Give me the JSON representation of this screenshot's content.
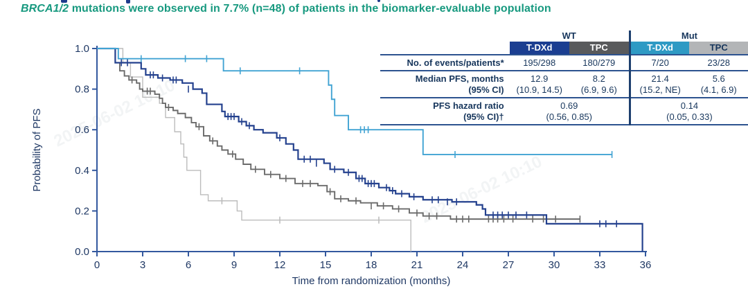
{
  "subtitle": {
    "gene": "BRCA1/2",
    "rest": " mutations were observed in 7.7% (n=48) of patients in the biomarker-evaluable population"
  },
  "watermark": "2025-06-02 10:10",
  "colors": {
    "subtitle_green": "#17997f",
    "table_text_navy": "#17365c",
    "axis_navy": "#33589e",
    "wt_tdxd_curve": "#24418e",
    "wt_tpc_curve": "#6a6a6a",
    "mut_tdxd_curve": "#41a3d3",
    "mut_tpc_curve": "#bcbcbc",
    "hdr_wt_tdxd_bg": "#1b3e91",
    "hdr_wt_tpc_bg": "#595a5c",
    "hdr_mut_tdxd_bg": "#2e9ac4",
    "hdr_mut_tpc_bg": "#b3b5b7"
  },
  "table": {
    "group_headers": [
      "WT",
      "Mut"
    ],
    "columns": [
      "T-DXd",
      "TPC",
      "T-DXd",
      "TPC"
    ],
    "row_events": {
      "label": "No. of events/patients*",
      "values": [
        "195/298",
        "180/279",
        "7/20",
        "23/28"
      ]
    },
    "row_median": {
      "label": "Median PFS, months",
      "label_ci": "(95% CI)",
      "values": [
        "12.9",
        "8.2",
        "21.4",
        "5.6"
      ],
      "cis": [
        "(10.9, 14.5)",
        "(6.9, 9.6)",
        "(15.2, NE)",
        "(4.1, 6.9)"
      ]
    },
    "row_hr": {
      "label": "PFS hazard ratio",
      "label_ci": "(95% CI)†",
      "values": [
        "0.69",
        "0.14"
      ],
      "cis": [
        "(0.56, 0.85)",
        "(0.05, 0.33)"
      ]
    }
  },
  "chart_data": {
    "type": "line",
    "subtype": "kaplan-meier-step",
    "title": "BRCA1/2 mutations were observed in 7.7% (n=48) of patients in the biomarker-evaluable population",
    "xlabel": "Time from randomization (months)",
    "ylabel": "Probability of PFS",
    "xlim": [
      0,
      36
    ],
    "ylim": [
      0.0,
      1.0
    ],
    "xticks": [
      0,
      3,
      6,
      9,
      12,
      15,
      18,
      21,
      24,
      27,
      30,
      33,
      36
    ],
    "ytick_labels": [
      "0.0",
      "0.2",
      "0.4",
      "0.6",
      "0.8",
      "1.0"
    ],
    "grid": false,
    "legend": "none (identified via table header colors)",
    "series": [
      {
        "name": "Mut TPC",
        "color": "#bcbcbc",
        "width": 1.4,
        "end": 20.6,
        "steps": [
          [
            0,
            1.0
          ],
          [
            1.7,
            0.93
          ],
          [
            2.2,
            0.86
          ],
          [
            3.0,
            0.76
          ],
          [
            4.1,
            0.73
          ],
          [
            4.5,
            0.66
          ],
          [
            5.1,
            0.59
          ],
          [
            5.5,
            0.53
          ],
          [
            5.7,
            0.465
          ],
          [
            5.9,
            0.4
          ],
          [
            6.8,
            0.28
          ],
          [
            7.3,
            0.25
          ],
          [
            9.2,
            0.2
          ],
          [
            9.5,
            0.155
          ],
          [
            20.6,
            0.0
          ]
        ],
        "censors": [
          [
            8.2,
            0.25
          ],
          [
            12.0,
            0.155
          ],
          [
            18.5,
            0.155
          ]
        ]
      },
      {
        "name": "WT TPC",
        "color": "#6a6a6a",
        "width": 1.9,
        "end": 31.7,
        "steps": [
          [
            0,
            1.0
          ],
          [
            1.2,
            0.93
          ],
          [
            1.5,
            0.89
          ],
          [
            1.8,
            0.865
          ],
          [
            2.1,
            0.845
          ],
          [
            2.6,
            0.83
          ],
          [
            2.8,
            0.8
          ],
          [
            3.0,
            0.79
          ],
          [
            3.8,
            0.775
          ],
          [
            4.1,
            0.755
          ],
          [
            4.3,
            0.73
          ],
          [
            4.5,
            0.71
          ],
          [
            5.0,
            0.695
          ],
          [
            5.3,
            0.68
          ],
          [
            5.8,
            0.66
          ],
          [
            6.2,
            0.635
          ],
          [
            6.5,
            0.615
          ],
          [
            7.0,
            0.57
          ],
          [
            7.4,
            0.545
          ],
          [
            7.9,
            0.52
          ],
          [
            8.2,
            0.5
          ],
          [
            8.6,
            0.48
          ],
          [
            9.1,
            0.455
          ],
          [
            9.6,
            0.43
          ],
          [
            10.1,
            0.405
          ],
          [
            11.0,
            0.38
          ],
          [
            12.0,
            0.36
          ],
          [
            13.0,
            0.335
          ],
          [
            14.5,
            0.325
          ],
          [
            15.1,
            0.295
          ],
          [
            15.6,
            0.26
          ],
          [
            16.5,
            0.25
          ],
          [
            17.3,
            0.24
          ],
          [
            18.4,
            0.225
          ],
          [
            19.4,
            0.21
          ],
          [
            20.5,
            0.19
          ],
          [
            21.4,
            0.175
          ],
          [
            23.2,
            0.16
          ]
        ],
        "censors": [
          [
            2.3,
            0.845
          ],
          [
            3.3,
            0.79
          ],
          [
            3.5,
            0.79
          ],
          [
            4.7,
            0.71
          ],
          [
            6.7,
            0.615
          ],
          [
            7.6,
            0.545
          ],
          [
            8.9,
            0.48
          ],
          [
            10.4,
            0.405
          ],
          [
            11.4,
            0.38
          ],
          [
            12.4,
            0.36
          ],
          [
            13.5,
            0.335
          ],
          [
            14.0,
            0.335
          ],
          [
            15.3,
            0.295
          ],
          [
            16.0,
            0.26
          ],
          [
            17.0,
            0.25
          ],
          [
            18.0,
            0.225
          ],
          [
            18.8,
            0.225
          ],
          [
            19.8,
            0.21
          ],
          [
            21.0,
            0.19
          ],
          [
            21.8,
            0.175
          ],
          [
            22.3,
            0.175
          ],
          [
            23.6,
            0.16
          ],
          [
            24.0,
            0.16
          ],
          [
            24.4,
            0.16
          ],
          [
            25.7,
            0.16
          ],
          [
            26.0,
            0.16
          ],
          [
            26.3,
            0.16
          ],
          [
            26.7,
            0.16
          ],
          [
            27.3,
            0.16
          ],
          [
            28.6,
            0.16
          ],
          [
            29.3,
            0.16
          ],
          [
            30.1,
            0.16
          ],
          [
            31.7,
            0.16
          ]
        ]
      },
      {
        "name": "WT T-DXd",
        "color": "#24418e",
        "width": 2.2,
        "end": 35.8,
        "steps": [
          [
            0,
            1.0
          ],
          [
            1.2,
            0.93
          ],
          [
            2.9,
            0.9
          ],
          [
            3.2,
            0.87
          ],
          [
            4.0,
            0.855
          ],
          [
            4.8,
            0.845
          ],
          [
            5.6,
            0.83
          ],
          [
            6.3,
            0.8
          ],
          [
            6.9,
            0.78
          ],
          [
            7.2,
            0.725
          ],
          [
            8.2,
            0.69
          ],
          [
            8.4,
            0.665
          ],
          [
            9.3,
            0.64
          ],
          [
            9.8,
            0.62
          ],
          [
            10.3,
            0.6
          ],
          [
            10.9,
            0.585
          ],
          [
            11.8,
            0.56
          ],
          [
            12.4,
            0.53
          ],
          [
            12.9,
            0.5
          ],
          [
            13.2,
            0.455
          ],
          [
            14.9,
            0.435
          ],
          [
            15.3,
            0.405
          ],
          [
            16.2,
            0.39
          ],
          [
            17.0,
            0.36
          ],
          [
            17.6,
            0.335
          ],
          [
            18.5,
            0.315
          ],
          [
            19.2,
            0.3
          ],
          [
            19.6,
            0.285
          ],
          [
            20.5,
            0.27
          ],
          [
            21.4,
            0.255
          ],
          [
            23.3,
            0.245
          ],
          [
            24.9,
            0.23
          ],
          [
            25.3,
            0.21
          ],
          [
            25.5,
            0.18
          ],
          [
            29.5,
            0.137
          ],
          [
            35.8,
            0.0
          ]
        ],
        "censors": [
          [
            1.6,
            0.93
          ],
          [
            2.0,
            0.93
          ],
          [
            3.5,
            0.87
          ],
          [
            3.7,
            0.87
          ],
          [
            4.3,
            0.855
          ],
          [
            5.0,
            0.845
          ],
          [
            5.2,
            0.845
          ],
          [
            6.0,
            0.8
          ],
          [
            8.6,
            0.665
          ],
          [
            8.8,
            0.665
          ],
          [
            9.0,
            0.665
          ],
          [
            9.5,
            0.64
          ],
          [
            10.0,
            0.62
          ],
          [
            12.0,
            0.56
          ],
          [
            13.6,
            0.455
          ],
          [
            14.0,
            0.455
          ],
          [
            14.4,
            0.435
          ],
          [
            15.6,
            0.405
          ],
          [
            16.5,
            0.39
          ],
          [
            17.2,
            0.36
          ],
          [
            17.4,
            0.36
          ],
          [
            17.8,
            0.335
          ],
          [
            18.0,
            0.335
          ],
          [
            18.2,
            0.335
          ],
          [
            19.0,
            0.315
          ],
          [
            19.4,
            0.3
          ],
          [
            20.0,
            0.285
          ],
          [
            20.8,
            0.27
          ],
          [
            22.0,
            0.255
          ],
          [
            22.4,
            0.255
          ],
          [
            23.0,
            0.245
          ],
          [
            23.6,
            0.245
          ],
          [
            26.0,
            0.18
          ],
          [
            26.3,
            0.18
          ],
          [
            26.6,
            0.18
          ],
          [
            27.0,
            0.18
          ],
          [
            27.5,
            0.18
          ],
          [
            28.2,
            0.18
          ],
          [
            33.0,
            0.137
          ],
          [
            33.4,
            0.137
          ],
          [
            34.1,
            0.137
          ]
        ]
      },
      {
        "name": "Mut T-DXd",
        "color": "#41a3d3",
        "width": 1.9,
        "end": 33.8,
        "steps": [
          [
            0,
            1.0
          ],
          [
            1.4,
            0.95
          ],
          [
            8.3,
            0.89
          ],
          [
            15.2,
            0.82
          ],
          [
            15.4,
            0.75
          ],
          [
            15.6,
            0.67
          ],
          [
            16.5,
            0.6
          ],
          [
            21.4,
            0.478
          ]
        ],
        "censors": [
          [
            2.9,
            0.95
          ],
          [
            5.8,
            0.95
          ],
          [
            7.2,
            0.95
          ],
          [
            9.4,
            0.89
          ],
          [
            13.3,
            0.89
          ],
          [
            17.3,
            0.6
          ],
          [
            17.55,
            0.6
          ],
          [
            17.8,
            0.6
          ],
          [
            23.5,
            0.478
          ],
          [
            33.8,
            0.478
          ]
        ]
      }
    ]
  }
}
